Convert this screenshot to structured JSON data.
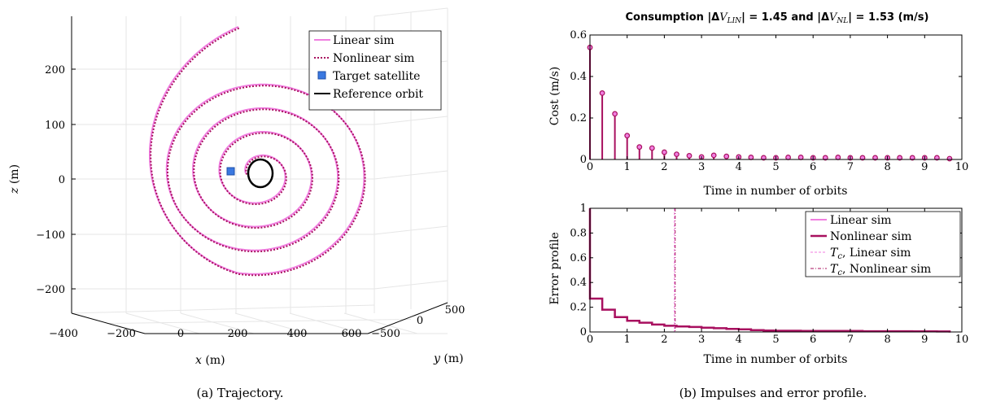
{
  "colors": {
    "linear": "#f07ee0",
    "nonlinear": "#a8105f",
    "ref": "#000000",
    "target": "#3a78e0"
  },
  "captions": {
    "a": "(a) Trajectory.",
    "b": "(b) Impulses and error profile."
  },
  "chart_data": [
    {
      "type": "line3d",
      "name": "trajectory",
      "xlabel": {
        "var": "x",
        "unit": "(m)"
      },
      "ylabel": {
        "var": "y",
        "unit": "(m)"
      },
      "zlabel": {
        "var": "z",
        "unit": "(m)"
      },
      "xticks": [
        "−400",
        "−200",
        "0",
        "200",
        "400",
        "600"
      ],
      "yticks": [
        "−500",
        "0",
        "500"
      ],
      "zticks": [
        "200",
        "100",
        "0",
        "−100",
        "−200"
      ],
      "legend": [
        "Linear sim",
        "Nonlinear sim",
        "Target satellite",
        "Reference orbit"
      ],
      "spiral": {
        "turns": 4.2,
        "r_start": 20,
        "r_end": 190
      }
    },
    {
      "type": "bar",
      "name": "consumption",
      "title": {
        "pre": "Consumption |Δ",
        "v1": "V",
        "s1": "LIN",
        "mid": "| = 1.45 and |Δ",
        "v2": "V",
        "s2": "NL",
        "post": "| = 1.53 (m/s)"
      },
      "xlabel": "Time in number of orbits",
      "ylabel": "Cost (m/s)",
      "xlim": [
        0,
        10
      ],
      "ylim": [
        0,
        0.6
      ],
      "xticks": [
        "0",
        "1",
        "2",
        "3",
        "4",
        "5",
        "6",
        "7",
        "8",
        "9",
        "10"
      ],
      "yticks": [
        "0",
        "0.2",
        "0.4",
        "0.6"
      ],
      "x": [
        0,
        0.33,
        0.67,
        1.0,
        1.33,
        1.67,
        2.0,
        2.33,
        2.67,
        3.0,
        3.33,
        3.67,
        4.0,
        4.33,
        4.67,
        5.0,
        5.33,
        5.67,
        6.0,
        6.33,
        6.67,
        7.0,
        7.33,
        7.67,
        8.0,
        8.33,
        8.67,
        9.0,
        9.33,
        9.67
      ],
      "values": [
        0.54,
        0.32,
        0.22,
        0.115,
        0.06,
        0.055,
        0.035,
        0.025,
        0.018,
        0.012,
        0.02,
        0.015,
        0.012,
        0.01,
        0.008,
        0.008,
        0.01,
        0.01,
        0.008,
        0.008,
        0.01,
        0.008,
        0.008,
        0.008,
        0.008,
        0.008,
        0.008,
        0.008,
        0.008,
        0.004
      ]
    },
    {
      "type": "line",
      "name": "error-profile",
      "xlabel": "Time in number of orbits",
      "ylabel": "Error profile",
      "xlim": [
        0,
        10
      ],
      "ylim": [
        0,
        1
      ],
      "xticks": [
        "0",
        "1",
        "2",
        "3",
        "4",
        "5",
        "6",
        "7",
        "8",
        "9",
        "10"
      ],
      "yticks": [
        "0",
        "0.2",
        "0.4",
        "0.6",
        "0.8",
        "1"
      ],
      "tc": 2.27,
      "legend": [
        "Linear sim",
        "Nonlinear sim",
        "Linear sim",
        "Nonlinear sim"
      ],
      "legend_prefix": "T",
      "legend_sub": "c",
      "series": [
        {
          "name": "Nonlinear sim",
          "x": [
            0,
            0.33,
            0.67,
            1.0,
            1.33,
            1.67,
            2.0,
            2.33,
            2.67,
            3.0,
            3.33,
            3.67,
            4.0,
            4.33,
            4.67,
            5.0,
            5.33,
            5.67,
            6.0,
            6.33,
            6.67,
            7.0,
            7.33,
            7.67,
            8.0,
            8.33,
            8.67,
            9.0,
            9.33,
            9.67
          ],
          "values": [
            0.27,
            0.18,
            0.12,
            0.09,
            0.075,
            0.06,
            0.05,
            0.045,
            0.04,
            0.035,
            0.03,
            0.025,
            0.022,
            0.015,
            0.012,
            0.01,
            0.01,
            0.008,
            0.008,
            0.008,
            0.008,
            0.008,
            0.006,
            0.006,
            0.006,
            0.006,
            0.005,
            0.005,
            0.004,
            0.003
          ]
        }
      ]
    }
  ]
}
